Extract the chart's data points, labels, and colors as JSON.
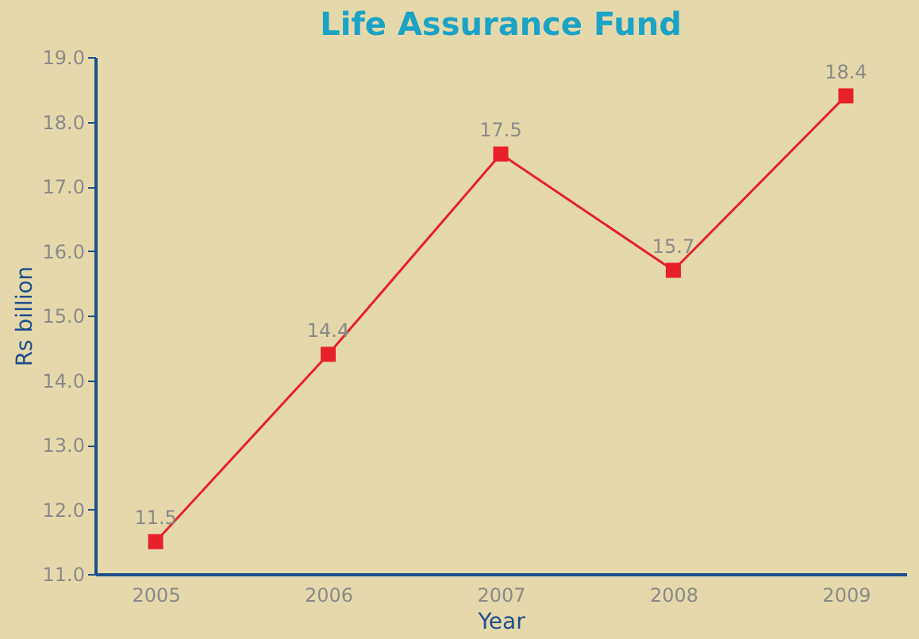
{
  "chart_data": {
    "type": "line",
    "title": "Life Assurance Fund",
    "xlabel": "Year",
    "ylabel": "Rs billion",
    "categories": [
      "2005",
      "2006",
      "2007",
      "2008",
      "2009"
    ],
    "series": [
      {
        "color": "#e8202a",
        "values": [
          11.5,
          14.4,
          17.5,
          15.7,
          18.4
        ]
      }
    ],
    "ylim": [
      11,
      19
    ],
    "yticks": [
      {
        "value": 11,
        "label": "11.0"
      },
      {
        "value": 12,
        "label": "12.0"
      },
      {
        "value": 13,
        "label": "13.0"
      },
      {
        "value": 14,
        "label": "14.0"
      },
      {
        "value": 15,
        "label": "15.0"
      },
      {
        "value": 16,
        "label": "16.0"
      },
      {
        "value": 17,
        "label": "17.0"
      },
      {
        "value": 18,
        "label": "18.0"
      },
      {
        "value": 19,
        "label": "19.0"
      }
    ],
    "data_labels": true,
    "grid": false,
    "legend": false,
    "marker": "square",
    "line_style": "solid"
  }
}
